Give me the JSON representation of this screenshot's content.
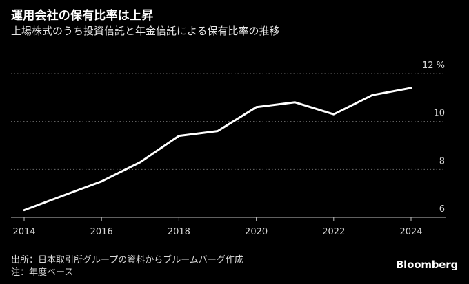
{
  "header": {
    "title": "運用会社の保有比率は上昇",
    "subtitle": "上場株式のうち投資信託と年金信託による保有比率の推移"
  },
  "chart_data": {
    "type": "line",
    "x": [
      2014,
      2015,
      2016,
      2017,
      2018,
      2019,
      2020,
      2021,
      2022,
      2023,
      2024
    ],
    "series": [
      {
        "values": [
          6.3,
          6.9,
          7.5,
          8.3,
          9.4,
          9.6,
          10.6,
          10.8,
          10.3,
          11.1,
          11.4
        ]
      }
    ],
    "x_ticks": [
      "2014",
      "2016",
      "2018",
      "2020",
      "2022",
      "2024"
    ],
    "y_ticks": [
      "6",
      "8",
      "10",
      "12"
    ],
    "y_unit": "%",
    "xlim": [
      2014,
      2024
    ],
    "ylim": [
      6,
      12
    ],
    "grid": "horizontal-dotted",
    "line_color": "#ffffff"
  },
  "footer": {
    "source": "出所：日本取引所グループの資料からブルームバーグ作成",
    "note": "注：年度ベース",
    "brand": "Bloomberg"
  }
}
